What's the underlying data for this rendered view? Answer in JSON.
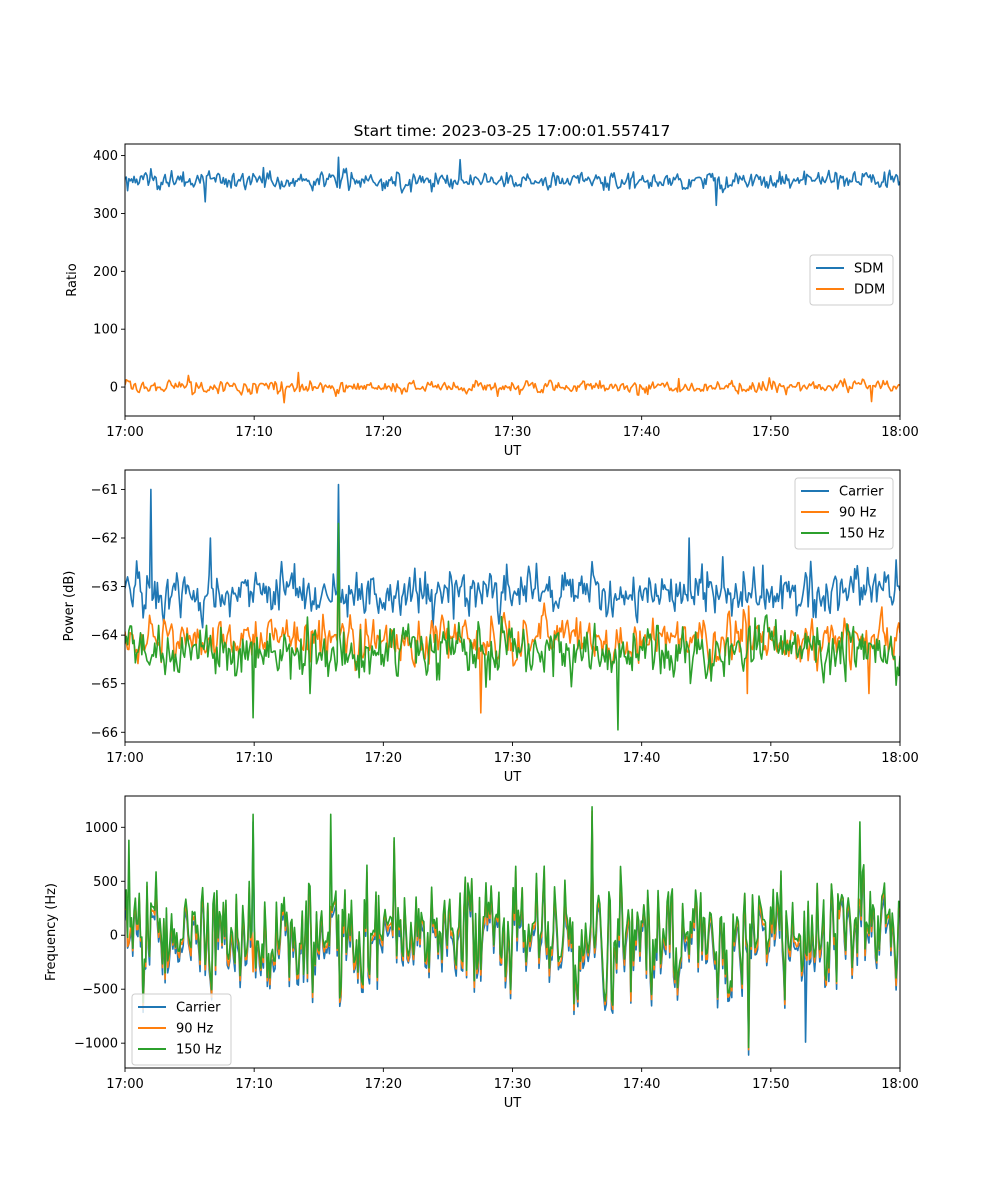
{
  "figure": {
    "title": "Start time: 2023-03-25 17:00:01.557417"
  },
  "colors": {
    "blue": "#1f77b4",
    "orange": "#ff7f0e",
    "green": "#2ca02c"
  },
  "chart_data": [
    {
      "type": "line",
      "title": "Start time: 2023-03-25 17:00:01.557417",
      "xlabel": "UT",
      "ylabel": "Ratio",
      "x_range": [
        "17:00",
        "18:00"
      ],
      "xticks": [
        "17:00",
        "17:10",
        "17:20",
        "17:30",
        "17:40",
        "17:50",
        "18:00"
      ],
      "ylim": [
        -50,
        420
      ],
      "yticks": [
        0,
        100,
        200,
        300,
        400
      ],
      "ytick_labels": [
        "0",
        "100",
        "200",
        "300",
        "400"
      ],
      "grid": false,
      "legend_position": "center-right",
      "samples": 600,
      "series": [
        {
          "name": "SDM",
          "color": "#1f77b4",
          "mean": 357,
          "spread": 12,
          "extremes": [
            [
              16.5,
              397
            ],
            [
              25.9,
              393
            ],
            [
              45.8,
              314
            ],
            [
              6.2,
              320
            ]
          ]
        },
        {
          "name": "DDM",
          "color": "#ff7f0e",
          "mean": 0,
          "spread": 8,
          "extremes": [
            [
              13.4,
              25
            ],
            [
              12.3,
              -27
            ],
            [
              57.8,
              -25
            ],
            [
              4.9,
              20
            ]
          ]
        }
      ]
    },
    {
      "type": "line",
      "title": "",
      "xlabel": "UT",
      "ylabel": "Power (dB)",
      "x_range": [
        "17:00",
        "18:00"
      ],
      "xticks": [
        "17:00",
        "17:10",
        "17:20",
        "17:30",
        "17:40",
        "17:50",
        "18:00"
      ],
      "ylim": [
        -66.2,
        -60.6
      ],
      "yticks": [
        -66,
        -65,
        -64,
        -63,
        -62,
        -61
      ],
      "ytick_labels": [
        "−66",
        "−65",
        "−64",
        "−63",
        "−62",
        "−61"
      ],
      "grid": false,
      "legend_position": "top-right",
      "samples": 600,
      "series": [
        {
          "name": "Carrier",
          "color": "#1f77b4",
          "mean": -63.1,
          "spread": 0.35,
          "extremes": [
            [
              2.0,
              -61.0
            ],
            [
              16.5,
              -60.9
            ],
            [
              43.7,
              -62.0
            ],
            [
              6.6,
              -62.0
            ]
          ]
        },
        {
          "name": "90 Hz",
          "color": "#ff7f0e",
          "mean": -64.05,
          "spread": 0.35,
          "extremes": [
            [
              27.5,
              -65.6
            ],
            [
              16.5,
              -62.0
            ],
            [
              48.2,
              -65.2
            ],
            [
              57.6,
              -65.2
            ]
          ]
        },
        {
          "name": "150 Hz",
          "color": "#2ca02c",
          "mean": -64.3,
          "spread": 0.4,
          "extremes": [
            [
              9.9,
              -65.7
            ],
            [
              38.2,
              -65.95
            ],
            [
              16.5,
              -61.7
            ],
            [
              14.3,
              -65.2
            ]
          ]
        }
      ]
    },
    {
      "type": "line",
      "title": "",
      "xlabel": "UT",
      "ylabel": "Frequency (Hz)",
      "x_range": [
        "17:00",
        "18:00"
      ],
      "xticks": [
        "17:00",
        "17:10",
        "17:20",
        "17:30",
        "17:40",
        "17:50",
        "18:00"
      ],
      "ylim": [
        -1230,
        1290
      ],
      "yticks": [
        -1000,
        -500,
        0,
        500,
        1000
      ],
      "ytick_labels": [
        "−1000",
        "−500",
        "0",
        "500",
        "1000"
      ],
      "grid": false,
      "legend_position": "bottom-left",
      "samples": 600,
      "series": [
        {
          "name": "Carrier",
          "color": "#1f77b4",
          "mean": -50,
          "spread": 330,
          "extremes": [
            [
              48.3,
              -1110
            ],
            [
              52.7,
              -990
            ],
            [
              36.2,
              1100
            ],
            [
              9.9,
              1050
            ]
          ]
        },
        {
          "name": "90 Hz",
          "color": "#ff7f0e",
          "mean": 0,
          "spread": 330,
          "extremes": [
            [
              48.3,
              -1060
            ],
            [
              36.2,
              1150
            ]
          ]
        },
        {
          "name": "150 Hz",
          "color": "#2ca02c",
          "mean": 40,
          "spread": 330,
          "extremes": [
            [
              36.2,
              1190
            ],
            [
              48.3,
              -1040
            ],
            [
              9.9,
              1120
            ],
            [
              15.9,
              1120
            ],
            [
              56.9,
              1050
            ],
            [
              0.3,
              880
            ]
          ]
        }
      ]
    }
  ]
}
